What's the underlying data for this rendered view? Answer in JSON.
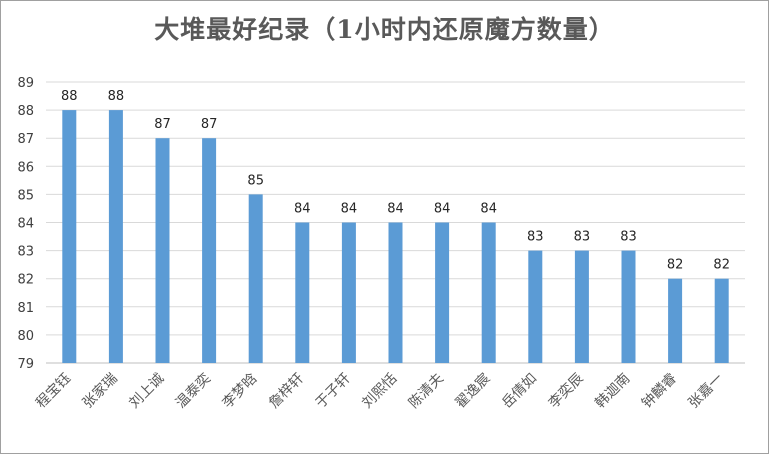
{
  "chart_data": {
    "type": "bar",
    "title": "大堆最好纪录（1小时内还原魔方数量）",
    "categories": [
      "程宝钰",
      "张家瑞",
      "刘上诚",
      "温泰奕",
      "李梦晗",
      "詹梓轩",
      "于子轩",
      "刘熙恬",
      "陈清夫",
      "翟逸宸",
      "岳倩如",
      "李奕辰",
      "韩迦南",
      "钟麟睿",
      "张嘉一"
    ],
    "values": [
      88,
      88,
      87,
      87,
      85,
      84,
      84,
      84,
      84,
      84,
      83,
      83,
      83,
      82,
      82
    ],
    "ylim": [
      79,
      89
    ],
    "yticks": [
      79,
      80,
      81,
      82,
      83,
      84,
      85,
      86,
      87,
      88,
      89
    ],
    "grid": true,
    "data_labels": true,
    "bar_color": "#5b9bd5",
    "grid_color": "#d9d9d9"
  }
}
